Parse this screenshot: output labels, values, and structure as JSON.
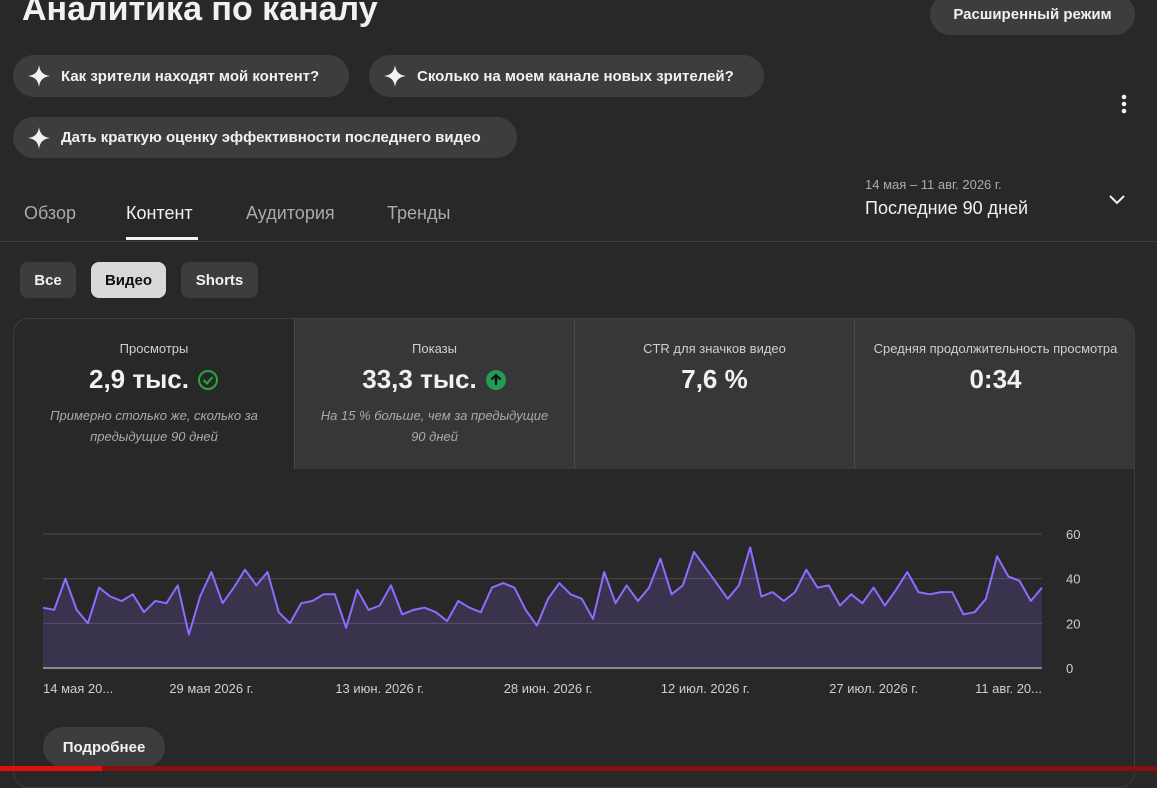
{
  "header": {
    "title": "Аналитика по каналу",
    "advanced_button": "Расширенный режим"
  },
  "suggestions": [
    "Как зрители находят мой контент?",
    "Сколько на моем канале новых зрителей?",
    "Дать краткую оценку эффективности последнего видео"
  ],
  "tabs": [
    "Обзор",
    "Контент",
    "Аудитория",
    "Тренды"
  ],
  "date_range": {
    "period": "14 мая – 11 авг. 2026 г.",
    "label": "Последние 90 дней"
  },
  "filters": [
    "Все",
    "Видео",
    "Shorts"
  ],
  "metrics": [
    {
      "label": "Просмотры",
      "value": "2,9 тыс.",
      "note": "Примерно столько же, сколько за предыдущие 90 дней"
    },
    {
      "label": "Показы",
      "value": "33,3 тыс.",
      "note": "На 15 % больше, чем за предыдущие 90 дней"
    },
    {
      "label": "CTR для значков видео",
      "value": "7,6 %"
    },
    {
      "label": "Средняя продолжительность просмотра",
      "value": "0:34"
    }
  ],
  "chart_data": {
    "type": "line",
    "categories": [
      "14 мая 20...",
      null,
      null,
      null,
      null,
      null,
      null,
      null,
      null,
      null,
      null,
      null,
      null,
      null,
      null,
      "29 мая 2026 г.",
      null,
      null,
      null,
      null,
      null,
      null,
      null,
      null,
      null,
      null,
      null,
      null,
      null,
      null,
      "13 июн. 2026 г.",
      null,
      null,
      null,
      null,
      null,
      null,
      null,
      null,
      null,
      null,
      null,
      null,
      null,
      null,
      "28 июн. 2026 г.",
      null,
      null,
      null,
      null,
      null,
      null,
      null,
      null,
      null,
      null,
      null,
      null,
      null,
      "12 июл. 2026 г.",
      null,
      null,
      null,
      null,
      null,
      null,
      null,
      null,
      null,
      null,
      null,
      null,
      null,
      null,
      "27 июл. 2026 г.",
      null,
      null,
      null,
      null,
      null,
      null,
      null,
      null,
      null,
      null,
      null,
      null,
      null,
      null,
      "11 авг. 20..."
    ],
    "values": [
      27,
      26,
      40,
      26,
      20,
      36,
      32,
      30,
      33,
      25,
      30,
      29,
      37,
      15,
      32,
      43,
      29,
      36,
      44,
      37,
      43,
      25,
      20,
      29,
      30,
      33,
      33,
      18,
      35,
      26,
      28,
      37,
      24,
      26,
      27,
      25,
      21,
      30,
      27,
      25,
      36,
      38,
      36,
      26,
      19,
      31,
      38,
      33,
      31,
      22,
      43,
      29,
      37,
      30,
      36,
      49,
      33,
      37,
      52,
      45,
      38,
      31,
      37,
      54,
      32,
      34,
      30,
      34,
      44,
      36,
      37,
      28,
      33,
      29,
      36,
      28,
      35,
      43,
      34,
      33,
      34,
      34,
      24,
      25,
      31,
      50,
      41,
      39,
      30,
      36
    ],
    "color": "#8f6bff",
    "ylim": [
      0,
      60
    ],
    "yticks": [
      0,
      20,
      40,
      60
    ],
    "grid": true
  },
  "more_button": "Подробнее"
}
